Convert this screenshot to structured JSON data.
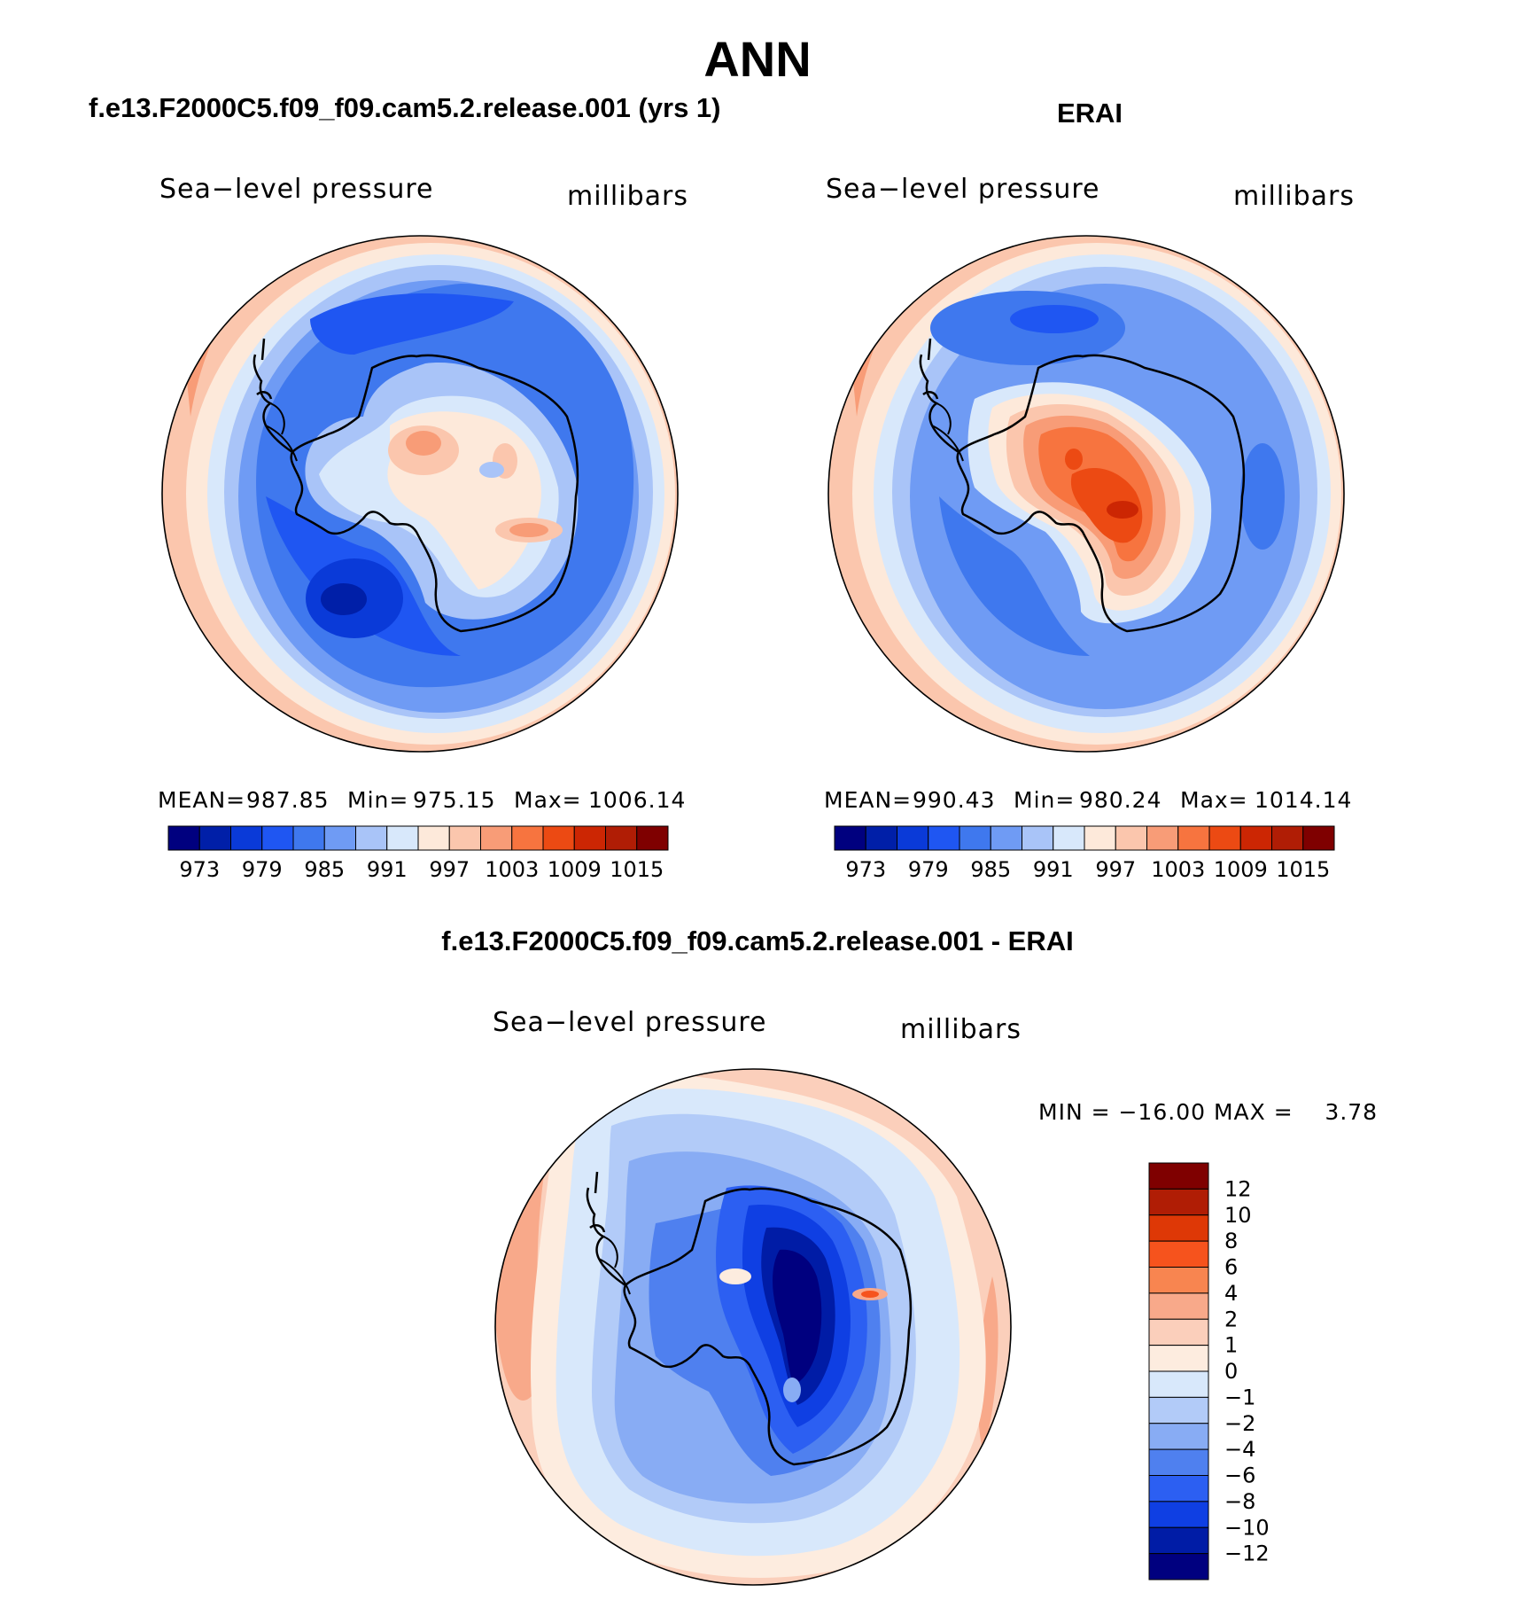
{
  "figure": {
    "title": "ANN"
  },
  "panels": {
    "model": {
      "title": "f.e13.F2000C5.f09_f09.cam5.2.release.001 (yrs 1)",
      "variable": "Sea−level pressure",
      "units": "millibars",
      "mean_label": "MEAN=",
      "mean": "987.85",
      "min_label": "Min=",
      "min": "975.15",
      "max_label": "Max=",
      "max": "1006.14"
    },
    "obs": {
      "title": "ERAI",
      "variable": "Sea−level pressure",
      "units": "millibars",
      "mean_label": "MEAN=",
      "mean": "990.43",
      "min_label": "Min=",
      "min": "980.24",
      "max_label": "Max=",
      "max": "1014.14"
    },
    "diff": {
      "title": "f.e13.F2000C5.f09_f09.cam5.2.release.001 - ERAI",
      "variable": "Sea−level pressure",
      "units": "millibars",
      "minmax_text": "MIN = −16.00 MAX =    3.78"
    }
  },
  "chart_data": [
    {
      "type": "heatmap",
      "projection": "south polar stereographic",
      "title": "f.e13.F2000C5.f09_f09.cam5.2.release.001 (yrs 1)",
      "variable": "Sea-level pressure",
      "units": "millibars",
      "mean": 987.85,
      "min": 975.15,
      "max": 1006.14,
      "colorbar_levels": [
        973,
        976,
        979,
        982,
        985,
        988,
        991,
        994,
        997,
        1000,
        1003,
        1006,
        1009,
        1012,
        1015
      ],
      "colorbar_tick_labels": [
        "973",
        "979",
        "985",
        "991",
        "997",
        "1003",
        "1009",
        "1015"
      ]
    },
    {
      "type": "heatmap",
      "projection": "south polar stereographic",
      "title": "ERAI",
      "variable": "Sea-level pressure",
      "units": "millibars",
      "mean": 990.43,
      "min": 980.24,
      "max": 1014.14,
      "colorbar_levels": [
        973,
        976,
        979,
        982,
        985,
        988,
        991,
        994,
        997,
        1000,
        1003,
        1006,
        1009,
        1012,
        1015
      ],
      "colorbar_tick_labels": [
        "973",
        "979",
        "985",
        "991",
        "997",
        "1003",
        "1009",
        "1015"
      ]
    },
    {
      "type": "heatmap",
      "projection": "south polar stereographic",
      "title": "f.e13.F2000C5.f09_f09.cam5.2.release.001 - ERAI",
      "variable": "Sea-level pressure",
      "units": "millibars",
      "min": -16.0,
      "max": 3.78,
      "colorbar_levels": [
        -12,
        -10,
        -8,
        -6,
        -4,
        -2,
        -1,
        0,
        1,
        2,
        4,
        6,
        8,
        10,
        12
      ],
      "colorbar_tick_labels": [
        "12",
        "10",
        "8",
        "6",
        "4",
        "2",
        "1",
        "0",
        "−1",
        "−2",
        "−4",
        "−6",
        "−8",
        "−10",
        "−12"
      ]
    }
  ],
  "colors": {
    "scale": [
      "#00007f",
      "#001fa8",
      "#0a3ad8",
      "#1f56f2",
      "#3f78ee",
      "#6f9bf4",
      "#a9c4f8",
      "#d8e8fb",
      "#fde9da",
      "#fbc6ad",
      "#f89c77",
      "#f7743f",
      "#ec4a13",
      "#cc2603",
      "#b01d05",
      "#7f0000"
    ],
    "diff_scale": [
      "#7f0000",
      "#b01d05",
      "#de3806",
      "#f6531d",
      "#f88550",
      "#f8a98a",
      "#fbcfbb",
      "#fdecdf",
      "#d8e8fb",
      "#b2cbf8",
      "#88acf4",
      "#4f80ef",
      "#2c5ff2",
      "#0f3fe3",
      "#001ca6",
      "#00007f"
    ],
    "coast": "#000000"
  }
}
